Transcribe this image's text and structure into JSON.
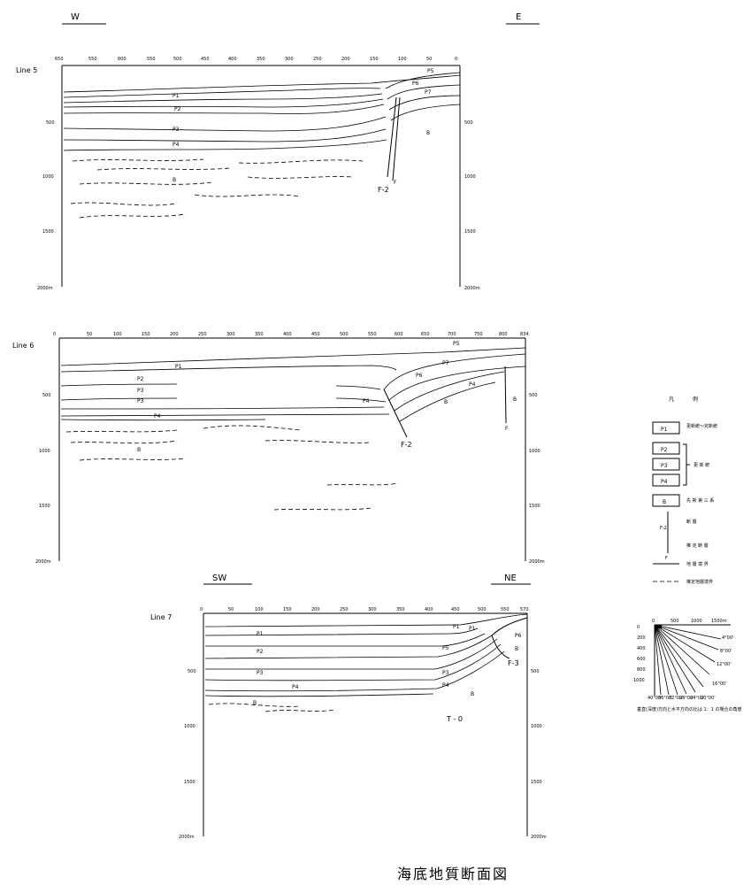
{
  "sections": [
    {
      "id": "line5",
      "name": "Line 5",
      "dir_left": "W",
      "dir_right": "E",
      "top_ticks": [
        "650",
        "550",
        "600",
        "550",
        "500",
        "450",
        "400",
        "350",
        "300",
        "250",
        "200",
        "150",
        "100",
        "50",
        "0"
      ],
      "left_depths": [
        "500",
        "1000",
        "1500",
        "2000m"
      ],
      "right_depths": [
        "500",
        "1000",
        "1500",
        "2000m"
      ],
      "units": [
        "P1",
        "P2",
        "P3",
        "P4",
        "P5",
        "P6",
        "P7",
        "B"
      ],
      "fault": "F-2",
      "fault_tip": "F"
    },
    {
      "id": "line6",
      "name": "Line 6",
      "top_ticks": [
        "0",
        "50",
        "100",
        "150",
        "200",
        "250",
        "300",
        "350",
        "400",
        "450",
        "500",
        "550",
        "600",
        "650",
        "700",
        "750",
        "800",
        "834"
      ],
      "left_depths": [
        "500",
        "1000",
        "1500",
        "2000m"
      ],
      "right_depths": [
        "500",
        "1000",
        "1500",
        "2000m"
      ],
      "units": [
        "P1",
        "P2",
        "P3",
        "P4",
        "P5",
        "P6",
        "P7",
        "B"
      ],
      "fault": "F-2",
      "fault_tip": "F"
    },
    {
      "id": "line7",
      "name": "Line 7",
      "dir_left": "SW",
      "dir_right": "NE",
      "top_ticks": [
        "0",
        "50",
        "100",
        "150",
        "200",
        "250",
        "300",
        "350",
        "400",
        "450",
        "500",
        "550",
        "570"
      ],
      "left_depths": [
        "500",
        "1000",
        "1500",
        "2000m"
      ],
      "right_depths": [
        "500",
        "1000",
        "1500",
        "2000m"
      ],
      "units": [
        "P1",
        "P2",
        "P3",
        "P4",
        "P5",
        "P6",
        "B"
      ],
      "fault": "F-3",
      "extra_label": "T - 0"
    }
  ],
  "legend": {
    "title_left": "凡",
    "title_right": "例",
    "items": [
      {
        "symbol": "P1",
        "text": "更新統～完新統"
      },
      {
        "symbol": "P2",
        "text": ""
      },
      {
        "symbol": "P3",
        "text": "更 新 統"
      },
      {
        "symbol": "P4",
        "text": ""
      },
      {
        "symbol": "B",
        "text": "先 新 第 三 系"
      },
      {
        "symbol": "F-2",
        "text": "断 層"
      },
      {
        "symbol": "F",
        "text": "推 定 断 層"
      },
      {
        "symbol": "",
        "text": "地 層 境 界"
      },
      {
        "symbol": "",
        "text": "推定地層境界"
      }
    ]
  },
  "scale": {
    "top_ticks": [
      "0",
      "500",
      "1000",
      "1500m"
    ],
    "depths": [
      "0",
      "200",
      "400",
      "600",
      "800",
      "1000"
    ],
    "angles": [
      "4°00'",
      "8°00'",
      "12°00'",
      "16°00'",
      "20°00'",
      "24°00'",
      "28°00'",
      "32°00'",
      "36°00'",
      "40°00'"
    ],
    "note": "垂直(深度)方向と水平方向の比は 1：1 の場合の角度"
  },
  "caption": "海底地質断面図"
}
